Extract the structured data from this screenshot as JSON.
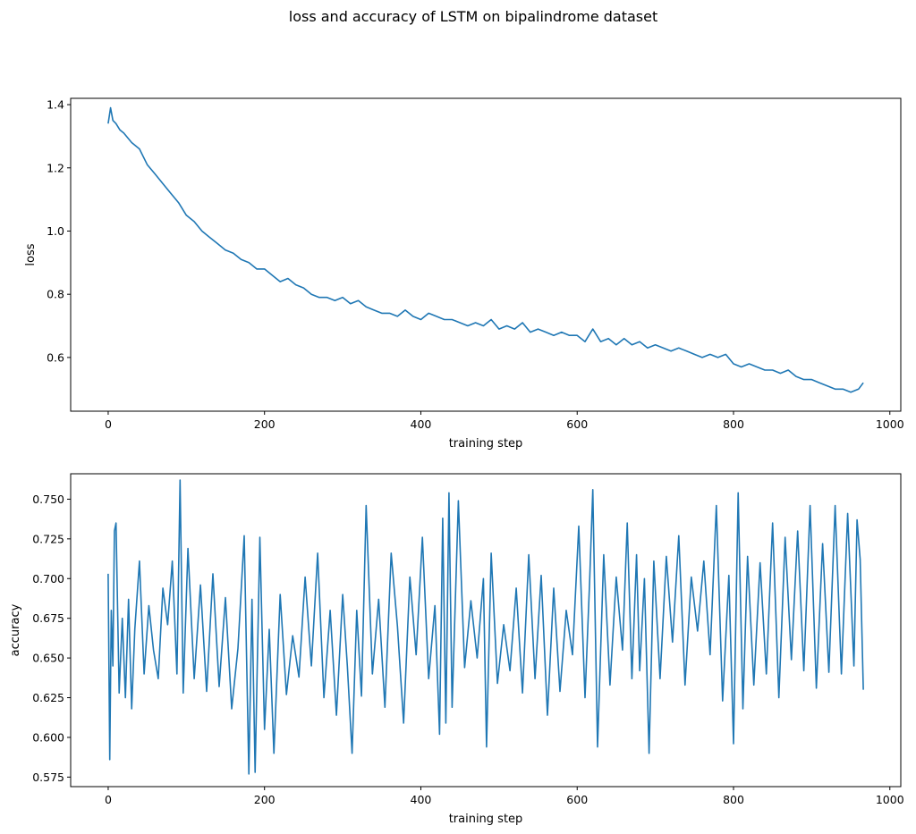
{
  "figure": {
    "suptitle": "loss and accuracy of LSTM on bipalindrome dataset"
  },
  "chart_data": [
    {
      "type": "line",
      "title": "",
      "xlabel": "training step",
      "ylabel": "loss",
      "xlim": [
        -48,
        1014
      ],
      "ylim": [
        0.43,
        1.42
      ],
      "xticks": [
        0,
        200,
        400,
        600,
        800,
        1000
      ],
      "xtick_labels": [
        "0",
        "200",
        "400",
        "600",
        "800",
        "1000"
      ],
      "yticks": [
        0.6,
        0.8,
        1.0,
        1.2,
        1.4
      ],
      "ytick_labels": [
        "0.6",
        "0.8",
        "1.0",
        "1.2",
        "1.4"
      ],
      "grid": false,
      "color": "#1f77b4",
      "x": [
        0,
        3,
        6,
        10,
        15,
        20,
        30,
        40,
        50,
        60,
        70,
        80,
        90,
        100,
        110,
        120,
        130,
        140,
        150,
        160,
        170,
        180,
        190,
        200,
        210,
        220,
        230,
        240,
        250,
        260,
        270,
        280,
        290,
        300,
        310,
        320,
        330,
        340,
        350,
        360,
        370,
        380,
        390,
        400,
        410,
        420,
        430,
        440,
        450,
        460,
        470,
        480,
        490,
        500,
        510,
        520,
        530,
        540,
        550,
        560,
        570,
        580,
        590,
        600,
        610,
        620,
        630,
        640,
        650,
        660,
        670,
        680,
        690,
        700,
        710,
        720,
        730,
        740,
        750,
        760,
        770,
        780,
        790,
        800,
        810,
        820,
        830,
        840,
        850,
        860,
        870,
        880,
        890,
        900,
        910,
        920,
        930,
        940,
        950,
        960,
        966
      ],
      "y": [
        1.34,
        1.39,
        1.35,
        1.34,
        1.32,
        1.31,
        1.28,
        1.26,
        1.21,
        1.18,
        1.15,
        1.12,
        1.09,
        1.05,
        1.03,
        1.0,
        0.98,
        0.96,
        0.94,
        0.93,
        0.91,
        0.9,
        0.88,
        0.88,
        0.86,
        0.84,
        0.85,
        0.83,
        0.82,
        0.8,
        0.79,
        0.79,
        0.78,
        0.79,
        0.77,
        0.78,
        0.76,
        0.75,
        0.74,
        0.74,
        0.73,
        0.75,
        0.73,
        0.72,
        0.74,
        0.73,
        0.72,
        0.72,
        0.71,
        0.7,
        0.71,
        0.7,
        0.72,
        0.69,
        0.7,
        0.69,
        0.71,
        0.68,
        0.69,
        0.68,
        0.67,
        0.68,
        0.67,
        0.67,
        0.65,
        0.69,
        0.65,
        0.66,
        0.64,
        0.66,
        0.64,
        0.65,
        0.63,
        0.64,
        0.63,
        0.62,
        0.63,
        0.62,
        0.61,
        0.6,
        0.61,
        0.6,
        0.61,
        0.58,
        0.57,
        0.58,
        0.57,
        0.56,
        0.56,
        0.55,
        0.56,
        0.54,
        0.53,
        0.53,
        0.52,
        0.51,
        0.5,
        0.5,
        0.49,
        0.5,
        0.52
      ]
    },
    {
      "type": "line",
      "title": "",
      "xlabel": "training step",
      "ylabel": "accuracy",
      "xlim": [
        -48,
        1014
      ],
      "ylim": [
        0.569,
        0.766
      ],
      "xticks": [
        0,
        200,
        400,
        600,
        800,
        1000
      ],
      "xtick_labels": [
        "0",
        "200",
        "400",
        "600",
        "800",
        "1000"
      ],
      "yticks": [
        0.575,
        0.6,
        0.625,
        0.65,
        0.675,
        0.7,
        0.725,
        0.75
      ],
      "ytick_labels": [
        "0.575",
        "0.600",
        "0.625",
        "0.650",
        "0.675",
        "0.700",
        "0.725",
        "0.750"
      ],
      "grid": false,
      "color": "#1f77b4",
      "x": [
        0,
        2,
        4,
        6,
        8,
        10,
        14,
        18,
        22,
        26,
        30,
        34,
        40,
        46,
        52,
        58,
        64,
        70,
        76,
        82,
        88,
        92,
        96,
        102,
        110,
        118,
        126,
        134,
        142,
        150,
        158,
        166,
        174,
        180,
        184,
        188,
        194,
        200,
        206,
        212,
        220,
        228,
        236,
        244,
        252,
        260,
        268,
        276,
        284,
        292,
        300,
        306,
        312,
        318,
        324,
        330,
        338,
        346,
        354,
        362,
        370,
        378,
        386,
        394,
        402,
        410,
        418,
        424,
        428,
        432,
        436,
        440,
        448,
        456,
        464,
        472,
        480,
        484,
        490,
        498,
        506,
        514,
        522,
        530,
        538,
        546,
        554,
        562,
        570,
        578,
        586,
        594,
        602,
        610,
        616,
        620,
        626,
        634,
        642,
        650,
        658,
        664,
        670,
        676,
        680,
        686,
        692,
        698,
        706,
        714,
        722,
        730,
        738,
        746,
        754,
        762,
        770,
        778,
        786,
        794,
        800,
        806,
        812,
        818,
        826,
        834,
        842,
        850,
        858,
        866,
        874,
        882,
        890,
        898,
        906,
        914,
        922,
        930,
        938,
        946,
        954,
        958,
        962,
        966
      ],
      "y": [
        0.703,
        0.586,
        0.68,
        0.645,
        0.73,
        0.735,
        0.628,
        0.675,
        0.625,
        0.687,
        0.618,
        0.668,
        0.711,
        0.64,
        0.683,
        0.655,
        0.637,
        0.694,
        0.671,
        0.711,
        0.64,
        0.762,
        0.628,
        0.719,
        0.637,
        0.696,
        0.629,
        0.703,
        0.632,
        0.688,
        0.618,
        0.656,
        0.727,
        0.577,
        0.687,
        0.578,
        0.726,
        0.605,
        0.668,
        0.59,
        0.69,
        0.627,
        0.664,
        0.638,
        0.701,
        0.645,
        0.716,
        0.625,
        0.68,
        0.614,
        0.69,
        0.645,
        0.59,
        0.68,
        0.626,
        0.746,
        0.64,
        0.687,
        0.619,
        0.716,
        0.67,
        0.609,
        0.701,
        0.652,
        0.726,
        0.637,
        0.683,
        0.602,
        0.738,
        0.609,
        0.754,
        0.619,
        0.749,
        0.644,
        0.686,
        0.65,
        0.7,
        0.594,
        0.716,
        0.634,
        0.671,
        0.642,
        0.694,
        0.628,
        0.715,
        0.637,
        0.702,
        0.614,
        0.694,
        0.629,
        0.68,
        0.652,
        0.733,
        0.625,
        0.699,
        0.756,
        0.594,
        0.715,
        0.633,
        0.701,
        0.655,
        0.735,
        0.637,
        0.715,
        0.642,
        0.7,
        0.59,
        0.711,
        0.637,
        0.714,
        0.66,
        0.727,
        0.633,
        0.701,
        0.667,
        0.711,
        0.652,
        0.746,
        0.623,
        0.702,
        0.596,
        0.754,
        0.618,
        0.714,
        0.633,
        0.71,
        0.64,
        0.735,
        0.625,
        0.726,
        0.649,
        0.73,
        0.642,
        0.746,
        0.631,
        0.722,
        0.641,
        0.746,
        0.64,
        0.741,
        0.645,
        0.737,
        0.712,
        0.63
      ]
    }
  ]
}
